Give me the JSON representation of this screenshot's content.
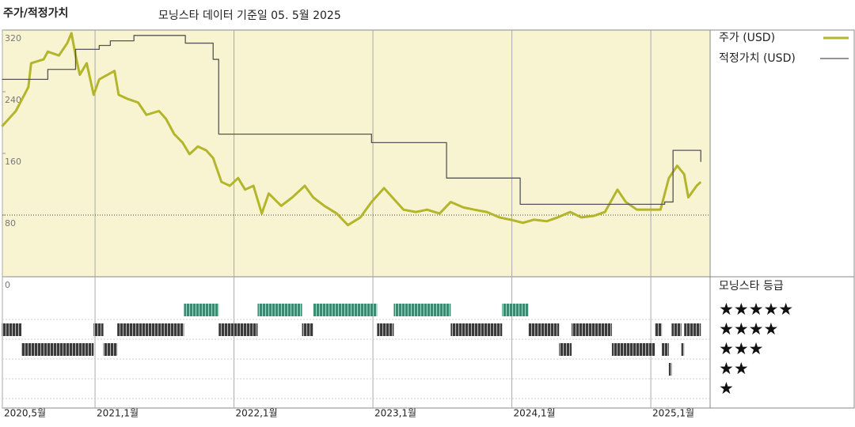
{
  "chart_data": {
    "type": "line",
    "title": "주가/적정가치",
    "subtitle": "모닝스타 데이터 기준일 05. 5월 2025",
    "xlim": [
      2020.333,
      2025.427
    ],
    "xticks": [
      {
        "value": 2020.333,
        "label": "2020,5월"
      },
      {
        "value": 2021,
        "label": "2021,1월"
      },
      {
        "value": 2022,
        "label": "2022,1월"
      },
      {
        "value": 2023,
        "label": "2023,1월"
      },
      {
        "value": 2024,
        "label": "2024,1월"
      },
      {
        "value": 2025,
        "label": "2025,1월"
      }
    ],
    "ylim": [
      0,
      320
    ],
    "yticks": [
      0,
      80,
      160,
      240,
      320
    ],
    "reference_line": 80,
    "background": "#f8f4d2",
    "series": [
      {
        "name": "주가 (USD)",
        "color": "#b3b52b",
        "drawstyle": "line",
        "x": [
          2020.33,
          2020.43,
          2020.52,
          2020.54,
          2020.63,
          2020.66,
          2020.74,
          2020.8,
          2020.83,
          2020.86,
          2020.89,
          2020.94,
          2020.99,
          2021.03,
          2021.09,
          2021.14,
          2021.17,
          2021.23,
          2021.31,
          2021.37,
          2021.46,
          2021.51,
          2021.57,
          2021.63,
          2021.68,
          2021.74,
          2021.8,
          2021.85,
          2021.91,
          2021.97,
          2022.03,
          2022.08,
          2022.14,
          2022.2,
          2022.25,
          2022.34,
          2022.42,
          2022.51,
          2022.57,
          2022.65,
          2022.74,
          2022.82,
          2022.91,
          2022.99,
          2023.08,
          2023.14,
          2023.22,
          2023.31,
          2023.39,
          2023.48,
          2023.56,
          2023.65,
          2023.73,
          2023.82,
          2023.91,
          2023.99,
          2024.08,
          2024.16,
          2024.25,
          2024.33,
          2024.42,
          2024.5,
          2024.59,
          2024.67,
          2024.76,
          2024.82,
          2024.9,
          2024.99,
          2025.07,
          2025.13,
          2025.19,
          2025.24,
          2025.27,
          2025.33,
          2025.36
        ],
        "values": [
          195,
          215,
          246,
          277,
          282,
          292,
          287,
          303,
          316,
          287,
          262,
          277,
          236,
          256,
          262,
          267,
          236,
          231,
          226,
          210,
          215,
          205,
          185,
          174,
          159,
          169,
          164,
          154,
          123,
          118,
          128,
          113,
          118,
          82,
          108,
          92,
          103,
          118,
          103,
          92,
          82,
          67,
          77,
          97,
          115,
          103,
          87,
          84,
          87,
          82,
          97,
          90,
          87,
          84,
          77,
          74,
          70,
          74,
          72,
          77,
          84,
          77,
          79,
          84,
          113,
          97,
          87,
          87,
          87,
          128,
          144,
          133,
          103,
          118,
          123
        ]
      },
      {
        "name": "적정가치 (USD)",
        "color": "#555555",
        "drawstyle": "steps-post",
        "x": [
          2020.33,
          2020.66,
          2020.86,
          2021.03,
          2021.11,
          2021.28,
          2021.65,
          2021.85,
          2021.89,
          2022.99,
          2023.53,
          2024.06,
          2025.1,
          2025.16,
          2025.36
        ],
        "values": [
          256,
          269,
          295,
          300,
          306,
          313,
          303,
          282,
          185,
          174,
          128,
          94,
          97,
          164,
          149
        ]
      }
    ],
    "rating_title": "모닝스타 등급",
    "rating_labels": [
      {
        "value": 5,
        "label": "★★★★★"
      },
      {
        "value": 4,
        "label": "★★★★"
      },
      {
        "value": 3,
        "label": "★★★"
      },
      {
        "value": 2,
        "label": "★★"
      },
      {
        "value": 1,
        "label": "★"
      }
    ],
    "ratings": {
      "x_start": [
        2020.33,
        2020.47,
        2020.99,
        2021.06,
        2021.16,
        2021.64,
        2021.89,
        2022.17,
        2022.49,
        2022.57,
        2023.03,
        2023.15,
        2023.56,
        2023.93,
        2024.12,
        2024.34,
        2024.43,
        2024.72,
        2025.03,
        2025.08,
        2025.13,
        2025.15,
        2025.22,
        2025.24
      ],
      "x_end": [
        2020.47,
        2020.99,
        2021.06,
        2021.16,
        2021.64,
        2021.89,
        2022.17,
        2022.49,
        2022.57,
        2023.03,
        2023.15,
        2023.56,
        2023.93,
        2024.12,
        2024.34,
        2024.43,
        2024.72,
        2025.03,
        2025.08,
        2025.13,
        2025.15,
        2025.22,
        2025.24,
        2025.36
      ],
      "values": [
        4,
        3,
        4,
        3,
        4,
        5,
        4,
        5,
        4,
        5,
        4,
        5,
        4,
        5,
        4,
        3,
        4,
        3,
        4,
        3,
        2,
        4,
        3,
        4
      ],
      "colors": {
        "5": "#3d8a72",
        "other": "#3a3a3a"
      }
    }
  }
}
